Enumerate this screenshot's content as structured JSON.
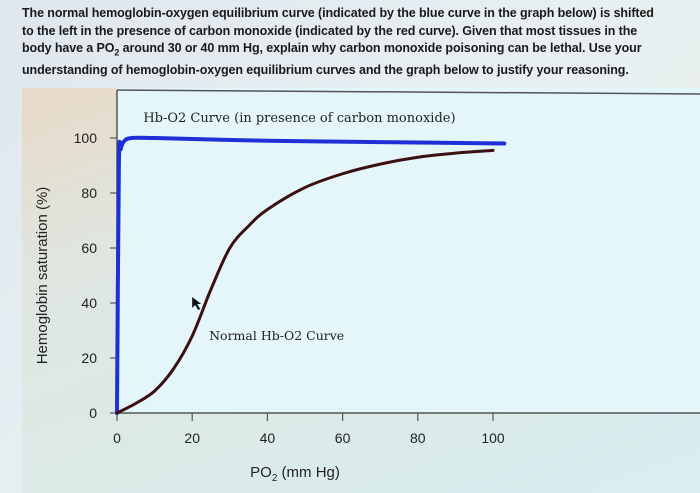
{
  "question": {
    "line1": "The normal hemoglobin-oxygen equilibrium curve (indicated by the blue curve in the graph below) is shifted",
    "line2": "to the left in the presence of carbon monoxide (indicated by the red curve). Given that most tissues in the",
    "line3_pre": "body have a PO",
    "line3_sub": "2",
    "line3_post": " around 30 or 40 mm Hg, explain why carbon monoxide poisoning can be lethal. Use your",
    "line4": "understanding of hemoglobin-oxygen equilibrium curves and the graph below to justify your reasoning."
  },
  "chart_data": {
    "type": "line",
    "xlabel_main": "PO",
    "xlabel_sub": "2",
    "xlabel_unit": " (mm Hg)",
    "ylabel": "Hemoglobin saturation (%)",
    "xlim": [
      0,
      105
    ],
    "ylim": [
      0,
      100
    ],
    "x_ticks": [
      "0",
      "20",
      "40",
      "60",
      "80",
      "100"
    ],
    "y_ticks": [
      "0",
      "20",
      "40",
      "60",
      "80",
      "100"
    ],
    "grid": false,
    "series": [
      {
        "name": "Hb-O2 Curve (in presence of carbon monoxide)",
        "color": "#1d2fd6",
        "x": [
          0,
          0.5,
          1,
          2,
          4,
          10,
          40,
          70,
          103
        ],
        "y": [
          0,
          90,
          96,
          99,
          100,
          100,
          99,
          98.5,
          98
        ]
      },
      {
        "name": "Normal Hb-O2 Curve",
        "color": "#3a1010",
        "x": [
          0,
          5,
          10,
          15,
          20,
          25,
          30,
          35,
          40,
          50,
          60,
          70,
          80,
          90,
          100
        ],
        "y": [
          0,
          3.5,
          8,
          16,
          28,
          45,
          60,
          68,
          74,
          82,
          87,
          90.5,
          93,
          94.5,
          95.5
        ]
      }
    ],
    "annotations": [
      {
        "text": "Hb-O2 Curve (in presence of carbon monoxide)",
        "series": 0
      },
      {
        "text": "Normal Hb-O2 Curve",
        "series": 1
      }
    ]
  }
}
